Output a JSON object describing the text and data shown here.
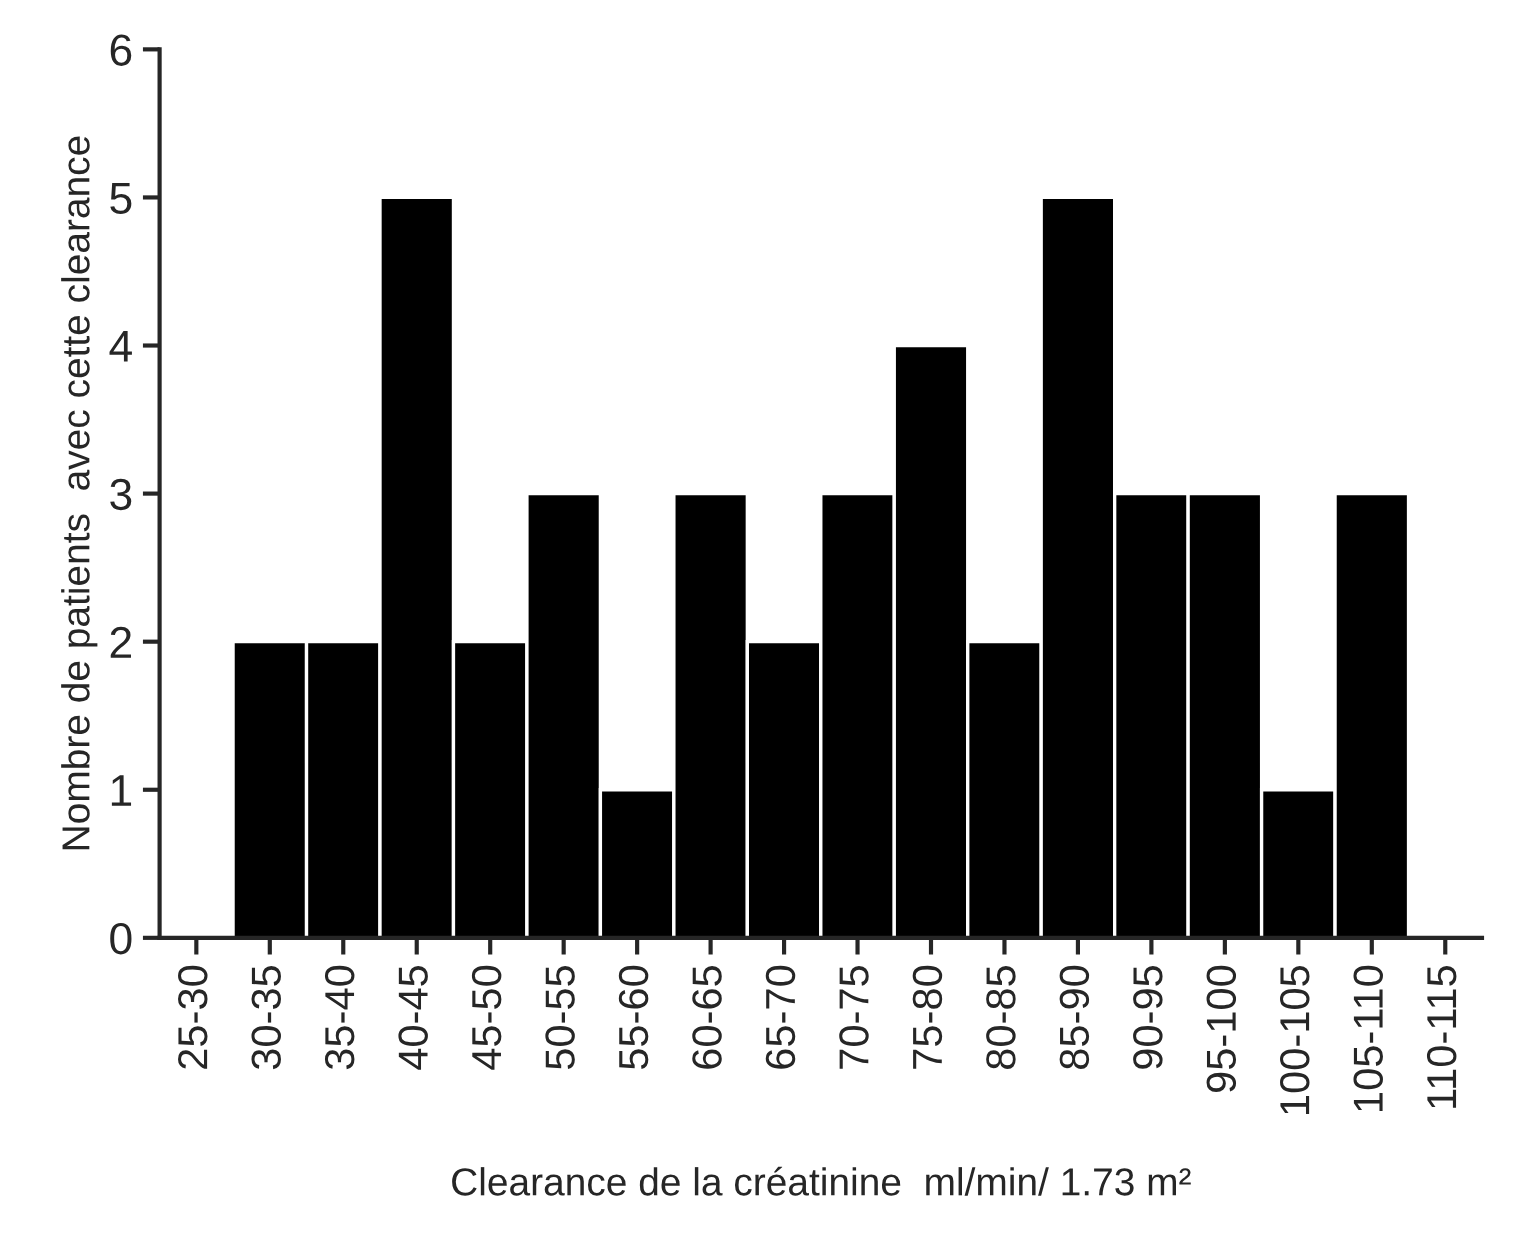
{
  "chart_data": {
    "type": "bar",
    "xlabel": "Clearance de la créatinine  ml/min/ 1.73 m²",
    "ylabel": "Nombre de patients  avec cette clearance",
    "categories": [
      "25-30",
      "30-35",
      "35-40",
      "40-45",
      "45-50",
      "50-55",
      "55-60",
      "60-65",
      "65-70",
      "70-75",
      "75-80",
      "80-85",
      "85-90",
      "90-95",
      "95-100",
      "100-105",
      "105-110",
      "110-115"
    ],
    "values": [
      null,
      2,
      2,
      5,
      2,
      3,
      1,
      3,
      2,
      3,
      4,
      2,
      5,
      3,
      3,
      1,
      3,
      null
    ],
    "color": "#000000",
    "ylim": [
      0,
      6
    ],
    "yticks": [
      0,
      1,
      2,
      3,
      4,
      5,
      6
    ],
    "grid": false
  }
}
